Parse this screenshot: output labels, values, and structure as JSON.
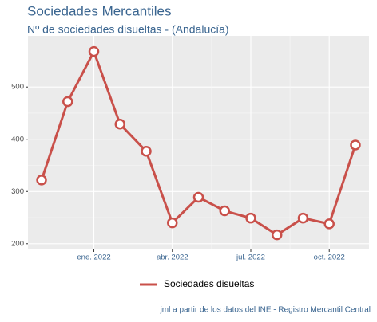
{
  "chart_data": {
    "type": "line",
    "title": "Sociedades Mercantiles",
    "subtitle": "Nº de sociedades disueltas - (Andalucía)",
    "caption": "jml a partir de los datos del INE - Registro Mercantil Central",
    "categories": [
      null,
      null,
      "ene. 2022",
      null,
      null,
      "abr. 2022",
      null,
      null,
      "jul. 2022",
      null,
      null,
      "oct. 2022",
      null
    ],
    "series": [
      {
        "name": "Sociedades disueltas",
        "color": "#c9504a",
        "values": [
          322,
          472,
          568,
          429,
          377,
          240,
          289,
          263,
          249,
          217,
          249,
          238,
          389
        ]
      }
    ],
    "ylim": [
      189,
      598
    ],
    "yticks": [
      200,
      300,
      400,
      500
    ],
    "grid": true,
    "legend": "bottom"
  }
}
